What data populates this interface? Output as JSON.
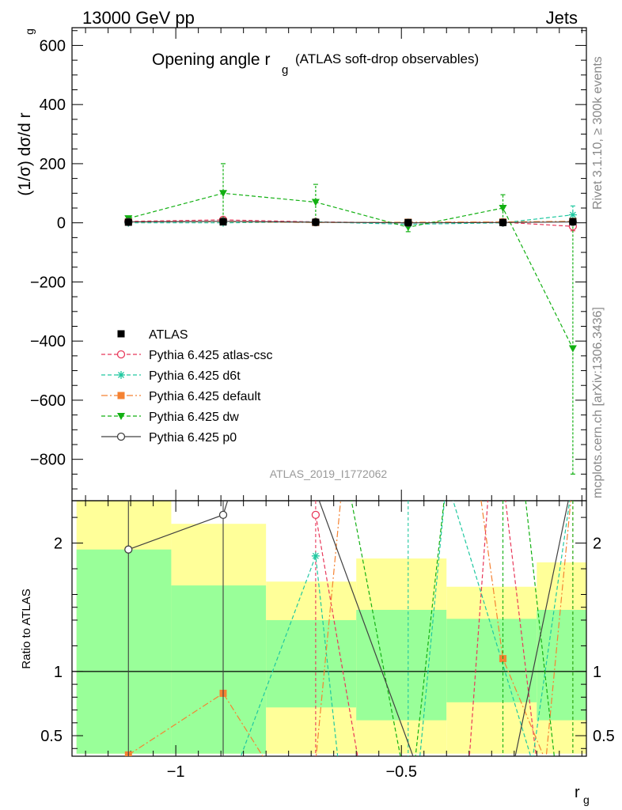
{
  "header": {
    "left": "13000 GeV pp",
    "right": "Jets"
  },
  "side_labels": {
    "rivet": "Rivet 3.1.10, ≥ 300k events",
    "mcplots": "mcplots.cern.ch [arXiv:1306.3436]"
  },
  "watermark": "ATLAS_2019_I1772062",
  "colors": {
    "band_yellow": "#ffff99",
    "band_green": "#99ff99",
    "atlas": "#000000",
    "atlas_csc": "#e8385a",
    "d6t": "#20c8a0",
    "default": "#f58232",
    "dw": "#12b012",
    "p0": "#404040"
  },
  "chart_data": {
    "type": "line",
    "title_main": "Opening angle r",
    "title_sub": "g",
    "title_paren": "(ATLAS soft-drop observables)",
    "ylabel": "(1/σ) dσ/d r",
    "ylabel_sub": "g",
    "xlabel": "r",
    "xlabel_sub": "g",
    "xlim": [
      -1.23,
      -0.09
    ],
    "ylim": [
      -940,
      660
    ],
    "ratio_ylabel": "Ratio to ATLAS",
    "ratio_ylim": [
      0.34,
      2.33
    ],
    "x_ticks": [
      -1,
      -0.5
    ],
    "x_tick_labels": [
      "−1",
      "−0.5"
    ],
    "y_ticks": [
      600,
      400,
      200,
      0,
      -200,
      -400,
      -600,
      -800
    ],
    "y_tick_labels": [
      "600",
      "400",
      "200",
      "0",
      "−200",
      "−400",
      "−600",
      "−800"
    ],
    "ratio_ticks": [
      2,
      1,
      0.5
    ],
    "ratio_tick_labels": [
      "2",
      "1",
      "0.5"
    ],
    "bins": [
      [
        -1.22,
        -1.01
      ],
      [
        -1.01,
        -0.8
      ],
      [
        -0.8,
        -0.6
      ],
      [
        -0.6,
        -0.4
      ],
      [
        -0.4,
        -0.2
      ],
      [
        -0.2,
        -0.09
      ]
    ],
    "band_total": [
      [
        0.36,
        2.33
      ],
      [
        0.36,
        2.15
      ],
      [
        0.36,
        1.7
      ],
      [
        0.36,
        1.88
      ],
      [
        0.36,
        1.66
      ],
      [
        0.36,
        1.85
      ]
    ],
    "band_stat": [
      [
        0.36,
        1.95
      ],
      [
        0.36,
        1.67
      ],
      [
        0.72,
        1.4
      ],
      [
        0.62,
        1.48
      ],
      [
        0.76,
        1.41
      ],
      [
        0.62,
        1.48
      ]
    ],
    "x": [
      -1.105,
      -0.895,
      -0.69,
      -0.485,
      -0.275,
      -0.12
    ],
    "legend": [
      "ATLAS",
      "Pythia 6.425 atlas-csc",
      "Pythia 6.425 d6t",
      "Pythia 6.425 default",
      "Pythia 6.425 dw",
      "Pythia 6.425 p0"
    ],
    "series": [
      {
        "key": "atlas",
        "y": [
          2,
          3,
          2,
          1,
          1,
          4
        ],
        "err": [
          3,
          3,
          3,
          3,
          3,
          5
        ]
      },
      {
        "key": "atlas_csc",
        "y": [
          5,
          10,
          3,
          0,
          2,
          -12
        ],
        "err": [
          0,
          0,
          0,
          0,
          0,
          15
        ],
        "ratio_x": [
          -0.69,
          -0.595,
          -0.53,
          -0.35,
          -0.305,
          -0.275,
          -0.2
        ],
        "ratio_y": [
          2.22,
          0.3,
          0.3,
          0.3,
          2.5,
          2.5,
          0.3
        ]
      },
      {
        "key": "d6t",
        "y": [
          0,
          0,
          3,
          -5,
          0,
          27
        ],
        "err": [
          0,
          0,
          0,
          0,
          0,
          30
        ],
        "ratio_x": [
          -0.86,
          -0.69,
          -0.64,
          -0.485,
          -0.46,
          -0.4,
          -0.21,
          -0.12
        ],
        "ratio_y": [
          0.3,
          1.9,
          0.3,
          0.3,
          0.3,
          2.5,
          0.3,
          2.5
        ]
      },
      {
        "key": "default",
        "y": [
          3,
          4,
          1,
          2,
          3,
          5
        ],
        "err": [
          2,
          2,
          2,
          2,
          2,
          5
        ],
        "ratio_x": [
          -1.105,
          -0.895,
          -0.8,
          -0.69,
          -0.63,
          -0.33,
          -0.275,
          -0.18,
          -0.12
        ],
        "ratio_y": [
          0.35,
          0.83,
          0.3,
          0.3,
          2.5,
          2.5,
          1.1,
          0.3,
          2.5
        ]
      },
      {
        "key": "dw",
        "y": [
          15,
          100,
          70,
          -15,
          50,
          -425
        ],
        "err": [
          8,
          100,
          60,
          15,
          45,
          425
        ],
        "ratio_x": [
          -0.69,
          -0.62,
          -0.5,
          -0.47,
          -0.4,
          -0.23,
          -0.16
        ],
        "ratio_y": [
          2.5,
          2.5,
          0.3,
          0.3,
          2.5,
          2.5,
          0.3
        ]
      },
      {
        "key": "p0",
        "y": [
          3,
          5,
          2,
          0,
          1,
          3
        ],
        "err": [
          0,
          0,
          0,
          0,
          0,
          0
        ],
        "ratio_x": [
          -1.105,
          -0.895,
          -0.87,
          -0.7,
          -0.47,
          -0.25,
          -0.12
        ],
        "ratio_y": [
          1.95,
          2.22,
          2.5,
          2.5,
          0.3,
          0.3,
          2.5
        ]
      }
    ]
  }
}
